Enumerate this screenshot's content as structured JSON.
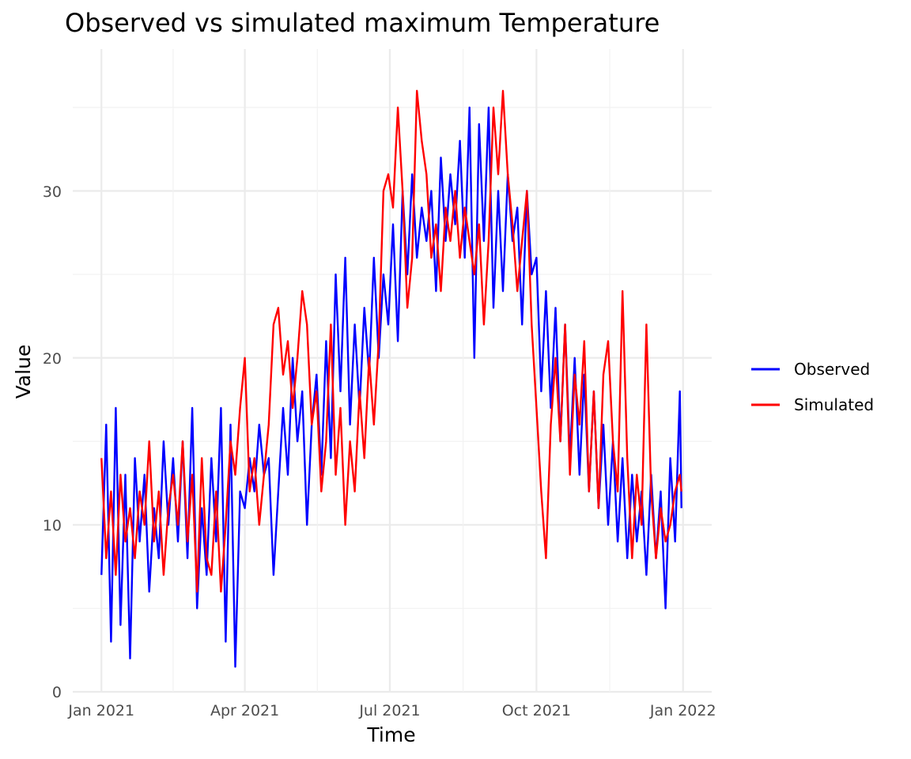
{
  "chart_data": {
    "type": "line",
    "title": "Observed vs simulated maximum Temperature",
    "xlabel": "Time",
    "ylabel": "Value",
    "x_ticks": [
      "Jan 2021",
      "Apr 2021",
      "Jul 2021",
      "Oct 2021",
      "Jan 2022"
    ],
    "x_tick_dates": [
      "2021-01-01",
      "2021-04-01",
      "2021-07-01",
      "2021-10-01",
      "2022-01-01"
    ],
    "x_range": [
      "2020-12-14",
      "2022-01-19"
    ],
    "y_ticks": [
      0,
      10,
      20,
      30
    ],
    "ylim": [
      0,
      38.5
    ],
    "grid": true,
    "legend_position": "right",
    "legend": [
      "Observed",
      "Simulated"
    ],
    "series": [
      {
        "name": "Observed",
        "color": "#0000ff",
        "points": [
          [
            "2021-01-01",
            7
          ],
          [
            "2021-01-04",
            16
          ],
          [
            "2021-01-07",
            3
          ],
          [
            "2021-01-10",
            17
          ],
          [
            "2021-01-13",
            4
          ],
          [
            "2021-01-16",
            13
          ],
          [
            "2021-01-19",
            2
          ],
          [
            "2021-01-22",
            14
          ],
          [
            "2021-01-25",
            9
          ],
          [
            "2021-01-28",
            13
          ],
          [
            "2021-01-31",
            6
          ],
          [
            "2021-02-03",
            11
          ],
          [
            "2021-02-06",
            8
          ],
          [
            "2021-02-09",
            15
          ],
          [
            "2021-02-12",
            10
          ],
          [
            "2021-02-15",
            14
          ],
          [
            "2021-02-18",
            9
          ],
          [
            "2021-02-21",
            15
          ],
          [
            "2021-02-24",
            8
          ],
          [
            "2021-02-27",
            17
          ],
          [
            "2021-03-02",
            5
          ],
          [
            "2021-03-05",
            11
          ],
          [
            "2021-03-08",
            7
          ],
          [
            "2021-03-11",
            14
          ],
          [
            "2021-03-14",
            9
          ],
          [
            "2021-03-17",
            17
          ],
          [
            "2021-03-20",
            3
          ],
          [
            "2021-03-23",
            16
          ],
          [
            "2021-03-26",
            1.5
          ],
          [
            "2021-03-29",
            12
          ],
          [
            "2021-04-01",
            11
          ],
          [
            "2021-04-04",
            14
          ],
          [
            "2021-04-07",
            12
          ],
          [
            "2021-04-10",
            16
          ],
          [
            "2021-04-13",
            13
          ],
          [
            "2021-04-16",
            14
          ],
          [
            "2021-04-19",
            7
          ],
          [
            "2021-04-22",
            12
          ],
          [
            "2021-04-25",
            17
          ],
          [
            "2021-04-28",
            13
          ],
          [
            "2021-05-01",
            20
          ],
          [
            "2021-05-04",
            15
          ],
          [
            "2021-05-07",
            18
          ],
          [
            "2021-05-10",
            10
          ],
          [
            "2021-05-13",
            16
          ],
          [
            "2021-05-16",
            19
          ],
          [
            "2021-05-19",
            13
          ],
          [
            "2021-05-22",
            21
          ],
          [
            "2021-05-25",
            14
          ],
          [
            "2021-05-28",
            25
          ],
          [
            "2021-05-31",
            18
          ],
          [
            "2021-06-03",
            26
          ],
          [
            "2021-06-06",
            16
          ],
          [
            "2021-06-09",
            22
          ],
          [
            "2021-06-12",
            17
          ],
          [
            "2021-06-15",
            23
          ],
          [
            "2021-06-18",
            19
          ],
          [
            "2021-06-21",
            26
          ],
          [
            "2021-06-24",
            20
          ],
          [
            "2021-06-27",
            25
          ],
          [
            "2021-06-30",
            22
          ],
          [
            "2021-07-03",
            28
          ],
          [
            "2021-07-06",
            21
          ],
          [
            "2021-07-09",
            30
          ],
          [
            "2021-07-12",
            25
          ],
          [
            "2021-07-15",
            31
          ],
          [
            "2021-07-18",
            26
          ],
          [
            "2021-07-21",
            29
          ],
          [
            "2021-07-24",
            27
          ],
          [
            "2021-07-27",
            30
          ],
          [
            "2021-07-30",
            24
          ],
          [
            "2021-08-02",
            32
          ],
          [
            "2021-08-05",
            27
          ],
          [
            "2021-08-08",
            31
          ],
          [
            "2021-08-11",
            28
          ],
          [
            "2021-08-14",
            33
          ],
          [
            "2021-08-17",
            26
          ],
          [
            "2021-08-20",
            35
          ],
          [
            "2021-08-23",
            20
          ],
          [
            "2021-08-26",
            34
          ],
          [
            "2021-08-29",
            27
          ],
          [
            "2021-09-01",
            35
          ],
          [
            "2021-09-04",
            23
          ],
          [
            "2021-09-07",
            30
          ],
          [
            "2021-09-10",
            24
          ],
          [
            "2021-09-13",
            31
          ],
          [
            "2021-09-16",
            27
          ],
          [
            "2021-09-19",
            29
          ],
          [
            "2021-09-22",
            22
          ],
          [
            "2021-09-25",
            30
          ],
          [
            "2021-09-28",
            25
          ],
          [
            "2021-10-01",
            26
          ],
          [
            "2021-10-04",
            18
          ],
          [
            "2021-10-07",
            24
          ],
          [
            "2021-10-10",
            17
          ],
          [
            "2021-10-13",
            23
          ],
          [
            "2021-10-16",
            15
          ],
          [
            "2021-10-19",
            22
          ],
          [
            "2021-10-22",
            14
          ],
          [
            "2021-10-25",
            20
          ],
          [
            "2021-10-28",
            13
          ],
          [
            "2021-10-31",
            19
          ],
          [
            "2021-11-03",
            12
          ],
          [
            "2021-11-06",
            18
          ],
          [
            "2021-11-09",
            11
          ],
          [
            "2021-11-12",
            16
          ],
          [
            "2021-11-15",
            10
          ],
          [
            "2021-11-18",
            15
          ],
          [
            "2021-11-21",
            9
          ],
          [
            "2021-11-24",
            14
          ],
          [
            "2021-11-27",
            8
          ],
          [
            "2021-11-30",
            13
          ],
          [
            "2021-12-03",
            9
          ],
          [
            "2021-12-06",
            12
          ],
          [
            "2021-12-09",
            7
          ],
          [
            "2021-12-12",
            13
          ],
          [
            "2021-12-15",
            8
          ],
          [
            "2021-12-18",
            12
          ],
          [
            "2021-12-21",
            5
          ],
          [
            "2021-12-24",
            14
          ],
          [
            "2021-12-27",
            9
          ],
          [
            "2021-12-30",
            18
          ],
          [
            "2021-12-31",
            11
          ]
        ]
      },
      {
        "name": "Simulated",
        "color": "#ff0000",
        "points": [
          [
            "2021-01-01",
            14
          ],
          [
            "2021-01-04",
            8
          ],
          [
            "2021-01-07",
            12
          ],
          [
            "2021-01-10",
            7
          ],
          [
            "2021-01-13",
            13
          ],
          [
            "2021-01-16",
            9
          ],
          [
            "2021-01-19",
            11
          ],
          [
            "2021-01-22",
            8
          ],
          [
            "2021-01-25",
            12
          ],
          [
            "2021-01-28",
            10
          ],
          [
            "2021-01-31",
            15
          ],
          [
            "2021-02-03",
            9
          ],
          [
            "2021-02-06",
            12
          ],
          [
            "2021-02-09",
            7
          ],
          [
            "2021-02-12",
            11
          ],
          [
            "2021-02-15",
            13
          ],
          [
            "2021-02-18",
            10
          ],
          [
            "2021-02-21",
            15
          ],
          [
            "2021-02-24",
            9
          ],
          [
            "2021-02-27",
            13
          ],
          [
            "2021-03-02",
            6
          ],
          [
            "2021-03-05",
            14
          ],
          [
            "2021-03-08",
            8
          ],
          [
            "2021-03-11",
            7
          ],
          [
            "2021-03-14",
            12
          ],
          [
            "2021-03-17",
            6
          ],
          [
            "2021-03-20",
            10
          ],
          [
            "2021-03-23",
            15
          ],
          [
            "2021-03-26",
            13
          ],
          [
            "2021-03-29",
            17
          ],
          [
            "2021-04-01",
            20
          ],
          [
            "2021-04-04",
            12
          ],
          [
            "2021-04-07",
            14
          ],
          [
            "2021-04-10",
            10
          ],
          [
            "2021-04-13",
            13
          ],
          [
            "2021-04-16",
            16
          ],
          [
            "2021-04-19",
            22
          ],
          [
            "2021-04-22",
            23
          ],
          [
            "2021-04-25",
            19
          ],
          [
            "2021-04-28",
            21
          ],
          [
            "2021-05-01",
            17
          ],
          [
            "2021-05-04",
            20
          ],
          [
            "2021-05-07",
            24
          ],
          [
            "2021-05-10",
            22
          ],
          [
            "2021-05-13",
            16
          ],
          [
            "2021-05-16",
            18
          ],
          [
            "2021-05-19",
            12
          ],
          [
            "2021-05-22",
            15
          ],
          [
            "2021-05-25",
            22
          ],
          [
            "2021-05-28",
            13
          ],
          [
            "2021-05-31",
            17
          ],
          [
            "2021-06-03",
            10
          ],
          [
            "2021-06-06",
            15
          ],
          [
            "2021-06-09",
            12
          ],
          [
            "2021-06-12",
            18
          ],
          [
            "2021-06-15",
            14
          ],
          [
            "2021-06-18",
            20
          ],
          [
            "2021-06-21",
            16
          ],
          [
            "2021-06-24",
            21
          ],
          [
            "2021-06-27",
            30
          ],
          [
            "2021-06-30",
            31
          ],
          [
            "2021-07-03",
            29
          ],
          [
            "2021-07-06",
            35
          ],
          [
            "2021-07-09",
            30
          ],
          [
            "2021-07-12",
            23
          ],
          [
            "2021-07-15",
            26
          ],
          [
            "2021-07-18",
            36
          ],
          [
            "2021-07-21",
            33
          ],
          [
            "2021-07-24",
            31
          ],
          [
            "2021-07-27",
            26
          ],
          [
            "2021-07-30",
            28
          ],
          [
            "2021-08-02",
            24
          ],
          [
            "2021-08-05",
            29
          ],
          [
            "2021-08-08",
            27
          ],
          [
            "2021-08-11",
            30
          ],
          [
            "2021-08-14",
            26
          ],
          [
            "2021-08-17",
            29
          ],
          [
            "2021-08-20",
            27
          ],
          [
            "2021-08-23",
            25
          ],
          [
            "2021-08-26",
            28
          ],
          [
            "2021-08-29",
            22
          ],
          [
            "2021-09-01",
            27
          ],
          [
            "2021-09-04",
            35
          ],
          [
            "2021-09-07",
            31
          ],
          [
            "2021-09-10",
            36
          ],
          [
            "2021-09-13",
            31
          ],
          [
            "2021-09-16",
            28
          ],
          [
            "2021-09-19",
            24
          ],
          [
            "2021-09-22",
            27
          ],
          [
            "2021-09-25",
            30
          ],
          [
            "2021-09-28",
            22
          ],
          [
            "2021-10-01",
            17
          ],
          [
            "2021-10-04",
            12
          ],
          [
            "2021-10-07",
            8
          ],
          [
            "2021-10-10",
            16
          ],
          [
            "2021-10-13",
            20
          ],
          [
            "2021-10-16",
            15
          ],
          [
            "2021-10-19",
            22
          ],
          [
            "2021-10-22",
            13
          ],
          [
            "2021-10-25",
            19
          ],
          [
            "2021-10-28",
            16
          ],
          [
            "2021-10-31",
            21
          ],
          [
            "2021-11-03",
            12
          ],
          [
            "2021-11-06",
            18
          ],
          [
            "2021-11-09",
            11
          ],
          [
            "2021-11-12",
            19
          ],
          [
            "2021-11-15",
            21
          ],
          [
            "2021-11-18",
            15
          ],
          [
            "2021-11-21",
            12
          ],
          [
            "2021-11-24",
            24
          ],
          [
            "2021-11-27",
            14
          ],
          [
            "2021-11-30",
            8
          ],
          [
            "2021-12-03",
            13
          ],
          [
            "2021-12-06",
            10
          ],
          [
            "2021-12-09",
            22
          ],
          [
            "2021-12-12",
            12
          ],
          [
            "2021-12-15",
            8
          ],
          [
            "2021-12-18",
            11
          ],
          [
            "2021-12-21",
            9
          ],
          [
            "2021-12-24",
            10
          ],
          [
            "2021-12-27",
            12
          ],
          [
            "2021-12-30",
            13
          ],
          [
            "2021-12-31",
            12
          ]
        ]
      }
    ]
  }
}
